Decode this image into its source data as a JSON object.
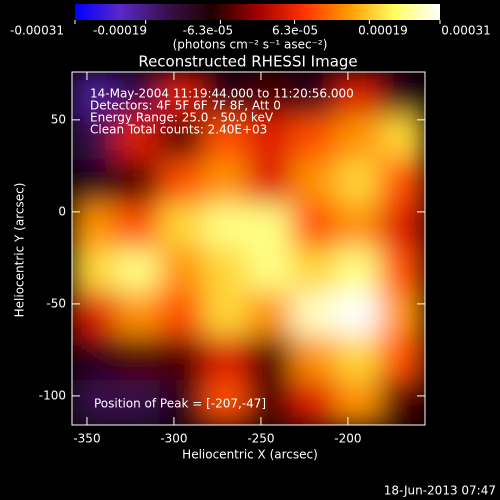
{
  "chart_data": {
    "type": "heatmap",
    "title": "Reconstructed RHESSI Image",
    "x_label": "Heliocentric X (arcsec)",
    "y_label": "Heliocentric Y (arcsec)",
    "annotations": [
      "14-May-2004 11:19:44.000 to 11:20:56.000",
      "Detectors: 4F 5F 6F 7F 8F, Att 0",
      "Energy Range: 25.0 - 50.0 keV",
      "Clean     Total counts: 2.40E+03"
    ],
    "peak_label": "Position of Peak = [-207,-47]",
    "timestamp": "18-Jun-2013 07:47",
    "x": [
      -345.9,
      -320.6,
      -295.2,
      -269.9,
      -244.5,
      -219.1,
      -193.8,
      -168.4
    ],
    "y": [
      64,
      40,
      16,
      -8,
      -32,
      -56,
      -80,
      -104
    ],
    "z": [
      [
        -0.0002,
        -0.00015,
        5e-05,
        -0.0001,
        -5e-05,
        -0.0001,
        5e-05,
        -0.0001
      ],
      [
        -0.00015,
        5e-05,
        -5e-05,
        0.0001,
        5e-05,
        0.0001,
        0.00015,
        0.0002
      ],
      [
        -0.0001,
        -5e-05,
        0.0001,
        0.00015,
        5e-05,
        0.00015,
        0.0002,
        0.0001
      ],
      [
        0.00015,
        0.0001,
        0.0002,
        0.00025,
        0.00025,
        0.0001,
        0.00015,
        5e-05
      ],
      [
        0.0002,
        0.00025,
        0.00015,
        0.0002,
        0.00025,
        0.0002,
        0.00025,
        0.0001
      ],
      [
        5e-05,
        0.00015,
        0.0001,
        0.0002,
        0.00015,
        0.00028,
        0.00031,
        0.00015
      ],
      [
        -0.0001,
        -5e-05,
        -5e-05,
        5e-05,
        -5e-05,
        0.00015,
        0.0002,
        0.0001
      ],
      [
        -0.00015,
        -0.00015,
        -0.0001,
        0.0001,
        -5e-05,
        5e-05,
        0.00015,
        -5e-05
      ]
    ],
    "xlim": [
      -358.6,
      -155.7
    ],
    "ylim": [
      -115.8,
      76
    ],
    "xticks": [
      -350,
      -300,
      -250,
      -200
    ],
    "yticks": [
      -100,
      -50,
      0,
      50
    ],
    "colormap": [
      "#0000ff",
      "#5a28c8",
      "#3a1050",
      "#200000",
      "#a00000",
      "#ff3000",
      "#ff9a00",
      "#ffff60",
      "#ffffff"
    ],
    "colorbar": {
      "label": "(photons cm⁻² s⁻¹ asec⁻²)",
      "lim": [
        -0.00031,
        0.00031
      ],
      "ticks": [
        -0.00031,
        -0.00019,
        {
          "value": -6.3e-05,
          "label": "-6.3e-05"
        },
        {
          "value": 6.3e-05,
          "label": "6.3e-05"
        },
        0.00019,
        0.00031
      ]
    }
  }
}
